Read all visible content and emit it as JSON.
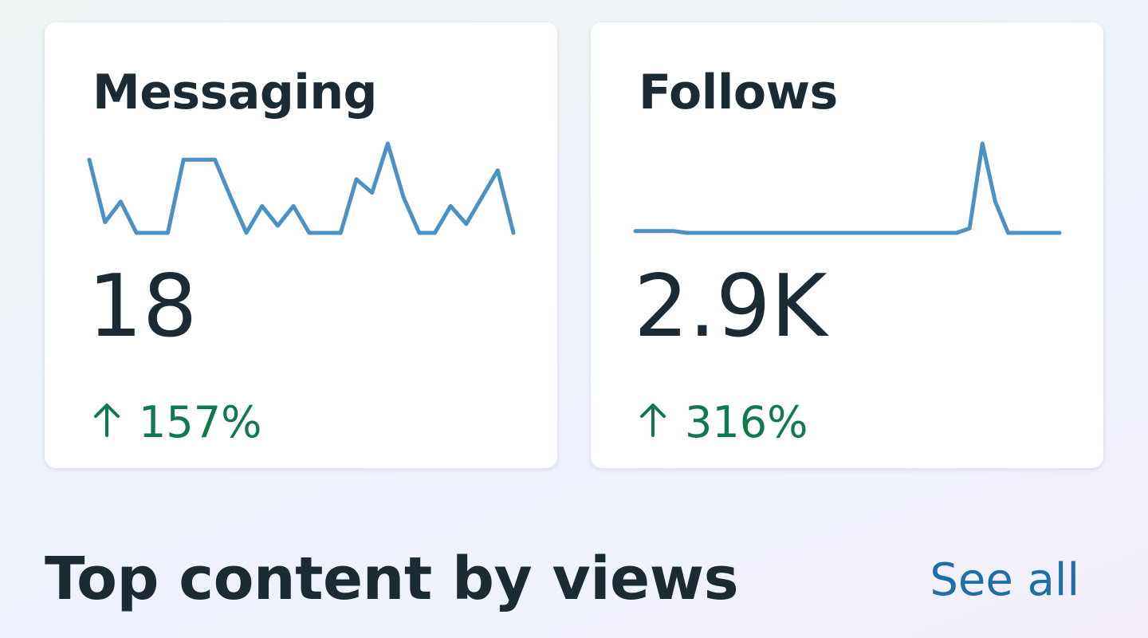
{
  "cards": [
    {
      "title": "Messaging",
      "value": "18",
      "change": "157%",
      "trend_icon": "arrow-up-icon",
      "trend_direction": "up",
      "sparkline": [
        0.82,
        0.12,
        0.35,
        0.0,
        0.0,
        0.0,
        0.82,
        0.82,
        0.82,
        0.4,
        0.0,
        0.3,
        0.08,
        0.3,
        0.0,
        0.0,
        0.0,
        0.6,
        0.45,
        1.0,
        0.4,
        0.0,
        0.0,
        0.3,
        0.1,
        0.4,
        0.7,
        0.0
      ]
    },
    {
      "title": "Follows",
      "value": "2.9K",
      "change": "316%",
      "trend_icon": "arrow-up-icon",
      "trend_direction": "up",
      "sparkline": [
        0.02,
        0.02,
        0.02,
        0.02,
        0.0,
        0.0,
        0.0,
        0.0,
        0.0,
        0.0,
        0.0,
        0.0,
        0.0,
        0.0,
        0.0,
        0.0,
        0.0,
        0.0,
        0.0,
        0.0,
        0.0,
        0.0,
        0.0,
        0.0,
        0.0,
        0.0,
        0.05,
        1.0,
        0.35,
        0.0,
        0.0,
        0.0,
        0.0,
        0.0
      ]
    }
  ],
  "section": {
    "heading": "Top content by views",
    "see_all_label": "See all"
  },
  "colors": {
    "sparkline": "#4a92c4",
    "positive": "#107a4c",
    "link": "#1d6fa8",
    "text": "#1c2b33"
  }
}
